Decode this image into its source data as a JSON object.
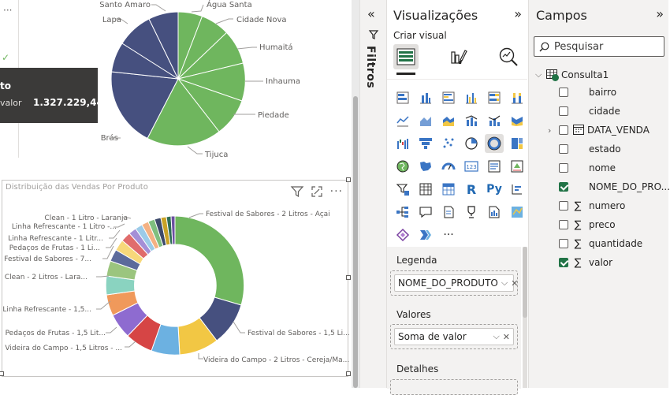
{
  "top_visual": {
    "labels": [
      "Santo Amaro",
      "Água Santa",
      "Cidade Nova",
      "Lapa",
      "Humaitá",
      "Inhauma",
      "Piedade",
      "Brás",
      "Tijuca"
    ],
    "tooltip": {
      "title": "to",
      "label": "valor",
      "value": "1.327.229,44"
    }
  },
  "bottom_visual": {
    "title": "Distribuição das Vendas Por Produto",
    "labels": {
      "l1": "Clean - 1 Litro - Laranja",
      "l2": "Linha Refrescante - 1 Litro -...",
      "l3": "Linha Refrescante - 1 Litr...",
      "l4": "Pedaços de Frutas - 1 Li...",
      "l5": "Festival de Sabores - 7...",
      "l6": "Clean - 2 Litros - Lara...",
      "l7": "Linha Refrescante - 1,5...",
      "l8": "Pedaços de Frutas - 1,5 Lit...",
      "l9": "Videira do Campo - 1,5 Litros - ...",
      "r1": "Festival de Sabores - 2 Litros - Açai",
      "r2": "Festival de Sabores - 1,5 Li...",
      "r3": "Videira do Campo - 2 Litros - Cereja/Ma..."
    }
  },
  "filters_strip": {
    "label": "Filtros"
  },
  "visualizations": {
    "title": "Visualizações",
    "build_label": "Criar visual",
    "wells": {
      "legend_title": "Legenda",
      "legend_field": "NOME_DO_PRODUTO",
      "values_title": "Valores",
      "values_field": "Soma de valor",
      "details_title": "Detalhes"
    }
  },
  "fields": {
    "title": "Campos",
    "search_placeholder": "Pesquisar",
    "table_name": "Consulta1",
    "items": [
      {
        "name": "bairro",
        "checked": false,
        "type": "text"
      },
      {
        "name": "cidade",
        "checked": false,
        "type": "text"
      },
      {
        "name": "DATA_VENDA",
        "checked": false,
        "type": "date"
      },
      {
        "name": "estado",
        "checked": false,
        "type": "text"
      },
      {
        "name": "nome",
        "checked": false,
        "type": "text"
      },
      {
        "name": "NOME_DO_PRO...",
        "checked": true,
        "type": "text"
      },
      {
        "name": "numero",
        "checked": false,
        "type": "sum"
      },
      {
        "name": "preco",
        "checked": false,
        "type": "sum"
      },
      {
        "name": "quantidade",
        "checked": false,
        "type": "sum"
      },
      {
        "name": "valor",
        "checked": true,
        "type": "sum"
      }
    ]
  },
  "colors": {
    "pie_green": "#6fb65e",
    "pie_navy": "#46507f",
    "accent": "#217346"
  }
}
